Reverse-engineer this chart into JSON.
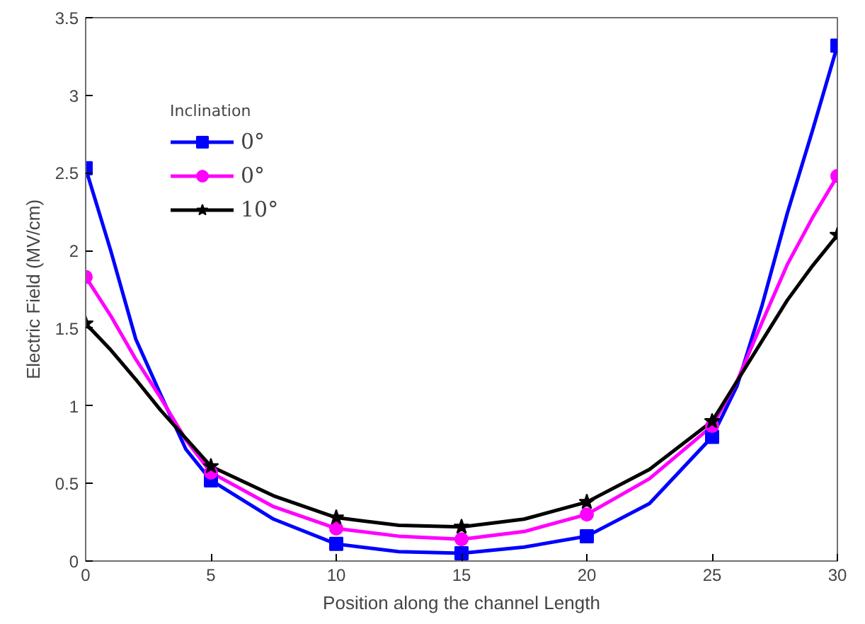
{
  "chart_data": {
    "type": "line",
    "xlabel": "Position along the channel Length",
    "ylabel": "Electric Field (MV/cm)",
    "legend_title": "Inclination",
    "legend": "top left",
    "grid": false,
    "xlim": [
      0,
      30
    ],
    "xticks": [
      0,
      5,
      10,
      15,
      20,
      25,
      30
    ],
    "ylim": [
      0,
      3.5
    ],
    "yticks": [
      0,
      0.5,
      1,
      1.5,
      2,
      2.5,
      3,
      3.5
    ],
    "x": [
      0,
      1,
      2,
      3,
      4,
      5,
      7.5,
      10,
      12.5,
      15,
      17.5,
      20,
      22.5,
      25,
      26,
      27,
      28,
      29,
      30
    ],
    "series": [
      {
        "name": "0°",
        "color": "#0000ff",
        "values": [
          2.53,
          2.0,
          1.43,
          1.07,
          0.72,
          0.52,
          0.27,
          0.11,
          0.06,
          0.05,
          0.09,
          0.16,
          0.37,
          0.8,
          1.13,
          1.65,
          2.24,
          2.77,
          3.32
        ]
      },
      {
        "name": "0°",
        "color": "#ff00ff",
        "values": [
          1.83,
          1.58,
          1.3,
          1.05,
          0.78,
          0.57,
          0.35,
          0.21,
          0.16,
          0.14,
          0.19,
          0.3,
          0.53,
          0.87,
          1.16,
          1.54,
          1.91,
          2.21,
          2.48
        ]
      },
      {
        "name": "10°",
        "color": "#000000",
        "values": [
          1.53,
          1.36,
          1.17,
          0.97,
          0.79,
          0.61,
          0.42,
          0.28,
          0.23,
          0.22,
          0.27,
          0.38,
          0.59,
          0.9,
          1.16,
          1.42,
          1.68,
          1.9,
          2.1
        ]
      },
      {
        "type": "scatter",
        "color": "#0000ff",
        "marker": "square",
        "x": [
          0,
          5,
          10,
          15,
          20,
          25,
          30
        ],
        "values": [
          2.53,
          0.52,
          0.11,
          0.05,
          0.16,
          0.8,
          3.32
        ]
      },
      {
        "type": "scatter",
        "color": "#ff00ff",
        "marker": "circle",
        "x": [
          0,
          5,
          10,
          15,
          20,
          25,
          30
        ],
        "values": [
          1.83,
          0.57,
          0.21,
          0.14,
          0.3,
          0.87,
          2.48
        ]
      },
      {
        "type": "scatter",
        "color": "#000000",
        "marker": "star",
        "x": [
          0,
          5,
          10,
          15,
          20,
          25,
          30
        ],
        "values": [
          1.53,
          0.61,
          0.28,
          0.22,
          0.38,
          0.9,
          2.1
        ]
      }
    ]
  }
}
